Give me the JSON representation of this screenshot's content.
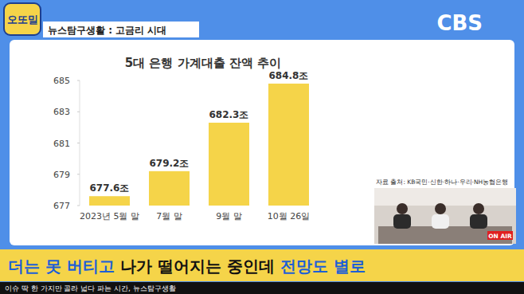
{
  "header": {
    "logo": "오또밀",
    "segment": "뉴스탐구생활 : 고금리 시대",
    "channel": "CBS"
  },
  "chart_data": {
    "type": "bar",
    "title": "5대 은행 가계대출 잔액 추이",
    "categories": [
      "2023년 5월 말",
      "7월 말",
      "9월 말",
      "10월 26일"
    ],
    "values": [
      677.6,
      679.2,
      682.3,
      684.8
    ],
    "value_labels": [
      "677.6조",
      "679.2조",
      "682.3조",
      "684.8조"
    ],
    "color": "#f5d449",
    "ylim": [
      677,
      685
    ],
    "yticks": [
      677,
      679,
      681,
      683,
      685
    ],
    "grid": false,
    "data_labels": true
  },
  "source": "자료 출처: KB국민·신한·하나·우리·NH농협은행",
  "on_air": "ON AIR",
  "caption": {
    "segments": [
      {
        "text": "더는 못 버티고",
        "highlight": true
      },
      {
        "text": " 나가 떨어지는 중인데 ",
        "highlight": false
      },
      {
        "text": "전망도 별로",
        "highlight": true
      }
    ]
  },
  "ticker": "이슈 딱 한 가지만 골라 넓다 파는 시간, 뉴스탐구생활"
}
